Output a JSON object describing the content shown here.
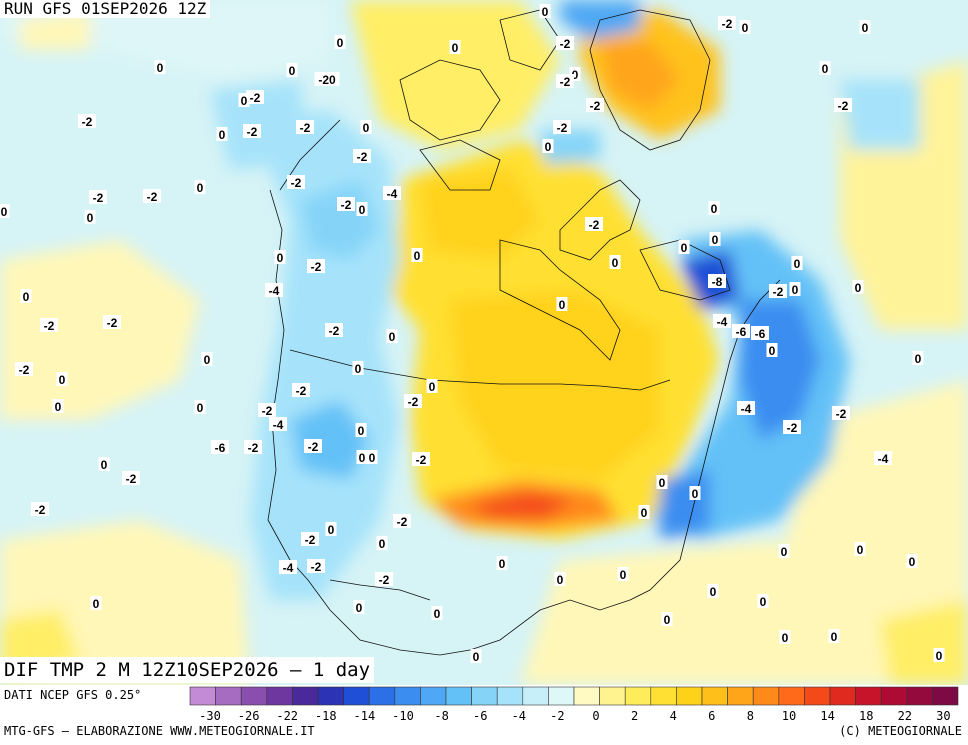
{
  "run_title": "RUN GFS 01SEP2026 12Z",
  "valid_title": "DIF TMP 2 M 12Z10SEP2026 — 1 day",
  "source_text": "DATI NCEP GFS 0.25°",
  "credit_left": "MTG-GFS — ELABORAZIONE WWW.METEOGIORNALE.IT",
  "credit_right": "(C) METEOGIORNALE",
  "colorbar": {
    "colors": [
      "#c38ad6",
      "#a56cc2",
      "#8a4fae",
      "#6e37a0",
      "#4a2a9a",
      "#2d33b5",
      "#1e4fd6",
      "#2c6fe6",
      "#3b8df0",
      "#4fa8f5",
      "#63c1f7",
      "#85d4f8",
      "#a6e3fa",
      "#c6eff9",
      "#def7f7",
      "#fff9c2",
      "#fff38f",
      "#ffec5a",
      "#ffe033",
      "#ffd21a",
      "#ffbf1a",
      "#ffa51a",
      "#ff8a1a",
      "#ff6a1a",
      "#f44a1a",
      "#e02a20",
      "#c8142a",
      "#ad0a34",
      "#940a3c",
      "#7d0a44"
    ],
    "tick_labels": [
      "-30",
      "-26",
      "-22",
      "-18",
      "-14",
      "-10",
      "-8",
      "-6",
      "-4",
      "-2",
      "0",
      "2",
      "4",
      "6",
      "8",
      "10",
      "14",
      "18",
      "22",
      "30"
    ]
  },
  "map_values": [
    {
      "t": "-2"
    },
    {
      "t": "0"
    },
    {
      "t": "-2"
    },
    {
      "t": "0"
    },
    {
      "t": "-2"
    },
    {
      "t": "0"
    },
    {
      "t": "0"
    },
    {
      "t": "-20"
    },
    {
      "t": "0"
    },
    {
      "t": "-2"
    },
    {
      "t": "0"
    },
    {
      "t": "0"
    },
    {
      "t": "-2"
    },
    {
      "t": "0"
    },
    {
      "t": "0"
    },
    {
      "t": "-2"
    },
    {
      "t": "0"
    },
    {
      "t": "-2"
    },
    {
      "t": "-2"
    },
    {
      "t": "-2"
    },
    {
      "t": "0"
    },
    {
      "t": "0"
    },
    {
      "t": "-2"
    },
    {
      "t": "0"
    },
    {
      "t": "-2"
    },
    {
      "t": "0"
    },
    {
      "t": "-2"
    },
    {
      "t": "-2"
    },
    {
      "t": "0"
    },
    {
      "t": "-2"
    },
    {
      "t": "0"
    },
    {
      "t": "0"
    },
    {
      "t": "0"
    },
    {
      "t": "-2"
    },
    {
      "t": "0"
    },
    {
      "t": "-4"
    },
    {
      "t": "-2"
    },
    {
      "t": "-4"
    },
    {
      "t": "0"
    },
    {
      "t": "0"
    },
    {
      "t": "0"
    },
    {
      "t": "-2"
    },
    {
      "t": "0"
    },
    {
      "t": "-8"
    },
    {
      "t": "0"
    },
    {
      "t": "-2"
    },
    {
      "t": "0"
    },
    {
      "t": "0"
    },
    {
      "t": "0"
    },
    {
      "t": "0"
    },
    {
      "t": "-2"
    },
    {
      "t": "0"
    },
    {
      "t": "-2"
    },
    {
      "t": "-2"
    },
    {
      "t": "-4"
    },
    {
      "t": "-6"
    },
    {
      "t": "-6"
    },
    {
      "t": "0"
    },
    {
      "t": "0"
    },
    {
      "t": "0"
    },
    {
      "t": "-2"
    },
    {
      "t": "-2"
    },
    {
      "t": "0"
    },
    {
      "t": "0"
    },
    {
      "t": "-2"
    },
    {
      "t": "-2"
    },
    {
      "t": "-4"
    },
    {
      "t": "0"
    },
    {
      "t": "-2"
    },
    {
      "t": "0"
    },
    {
      "t": "0"
    },
    {
      "t": "-2"
    },
    {
      "t": "-4"
    },
    {
      "t": "-6"
    },
    {
      "t": "-2"
    },
    {
      "t": "-2"
    },
    {
      "t": "0"
    },
    {
      "t": "0"
    },
    {
      "t": "-2"
    },
    {
      "t": "0"
    },
    {
      "t": "-2"
    },
    {
      "t": "-4"
    },
    {
      "t": "0"
    },
    {
      "t": "0"
    },
    {
      "t": "0"
    },
    {
      "t": "-2"
    },
    {
      "t": "-2"
    },
    {
      "t": "0"
    },
    {
      "t": "-2"
    },
    {
      "t": "0"
    },
    {
      "t": "-4"
    },
    {
      "t": "-2"
    },
    {
      "t": "0"
    },
    {
      "t": "-2"
    },
    {
      "t": "0"
    },
    {
      "t": "0"
    },
    {
      "t": "0"
    },
    {
      "t": "0"
    },
    {
      "t": "0"
    },
    {
      "t": "0"
    },
    {
      "t": "0"
    },
    {
      "t": "0"
    },
    {
      "t": "0"
    },
    {
      "t": "0"
    },
    {
      "t": "0"
    },
    {
      "t": "0"
    },
    {
      "t": "0"
    },
    {
      "t": "0"
    },
    {
      "t": "0"
    },
    {
      "t": "0"
    }
  ]
}
